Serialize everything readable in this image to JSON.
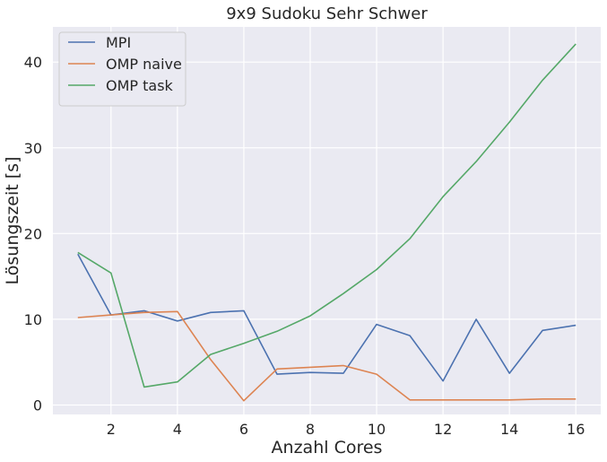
{
  "chart_data": {
    "type": "line",
    "title": "9x9 Sudoku Sehr Schwer",
    "xlabel": "Anzahl Cores",
    "ylabel": "Lösungszeit [s]",
    "xlim": [
      0.25,
      16.75
    ],
    "ylim": [
      -1.1,
      44.1
    ],
    "xticks": [
      2,
      4,
      6,
      8,
      10,
      12,
      14,
      16
    ],
    "yticks": [
      0,
      10,
      20,
      30,
      40
    ],
    "grid": true,
    "legend_position": "top-left",
    "x": [
      1,
      2,
      3,
      4,
      5,
      6,
      7,
      8,
      9,
      10,
      11,
      12,
      13,
      14,
      15,
      16
    ],
    "series": [
      {
        "name": "MPI",
        "color": "#4c72b0",
        "values": [
          17.6,
          10.5,
          11.0,
          9.8,
          10.8,
          11.0,
          3.6,
          3.8,
          3.7,
          9.4,
          8.1,
          2.8,
          10.0,
          3.7,
          8.7,
          9.3
        ]
      },
      {
        "name": "OMP naive",
        "color": "#dd8452",
        "values": [
          10.2,
          10.5,
          10.8,
          10.9,
          5.3,
          0.5,
          4.2,
          4.4,
          4.6,
          3.6,
          0.6,
          0.6,
          0.6,
          0.6,
          0.7,
          0.7
        ]
      },
      {
        "name": "OMP task",
        "color": "#55a868",
        "values": [
          17.8,
          15.4,
          2.1,
          2.7,
          5.9,
          7.2,
          8.6,
          10.4,
          13.0,
          15.8,
          19.4,
          24.3,
          28.4,
          33.0,
          37.9,
          42.1
        ]
      }
    ]
  }
}
